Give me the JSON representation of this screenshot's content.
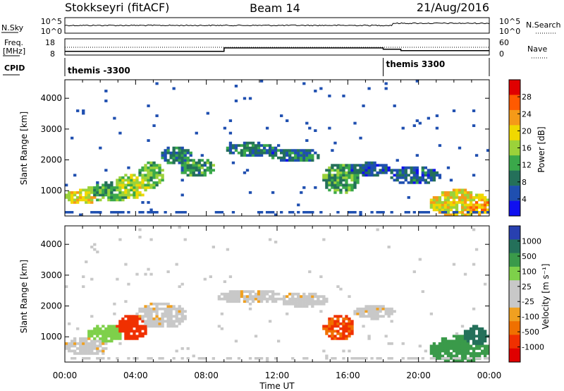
{
  "header": {
    "station": "Stokkseyri (fitACF)",
    "beam": "Beam 14",
    "date": "21/Aug/2016"
  },
  "sky_panel": {
    "left_label": "N.Sky",
    "right_label": "N.Search",
    "left_ticks": [
      "10^5",
      "10^0"
    ],
    "right_ticks": [
      "10^5",
      "10^0"
    ]
  },
  "freq_panel": {
    "left_label_line1": "Freq.",
    "left_label_line2": "[MHz]",
    "right_label": "Nave",
    "left_ticks": [
      "18",
      "8"
    ],
    "right_ticks": [
      "60",
      "0"
    ],
    "freq_steps": [
      {
        "start_hour": 0,
        "end_hour": 9,
        "mhz": 10.3
      },
      {
        "start_hour": 9,
        "end_hour": 18,
        "mhz": 12.4
      },
      {
        "start_hour": 18,
        "end_hour": 19,
        "mhz": 11.6
      },
      {
        "start_hour": 19,
        "end_hour": 24,
        "mhz": 10.7
      }
    ]
  },
  "cpid_panel": {
    "label": "CPID",
    "segments": [
      {
        "start_hour": 0,
        "label": "themis -3300"
      },
      {
        "start_hour": 18,
        "label": "themis 3300"
      }
    ]
  },
  "chart_data": [
    {
      "type": "heatmap",
      "name": "power",
      "ylabel": "Slant Range [km]",
      "xlabel": "",
      "ylim": [
        180,
        4600
      ],
      "yticks": [
        "1000",
        "2000",
        "3000",
        "4000"
      ],
      "colorbar_label": "Power [dB]",
      "colorbar_ticks": [
        "28",
        "24",
        "20",
        "16",
        "12",
        "8",
        "4"
      ],
      "colorbar_colors": [
        "#e00000",
        "#ff5a00",
        "#f59a18",
        "#f0d800",
        "#9bd23a",
        "#3aa84a",
        "#24705a",
        "#1f4fb0",
        "#1010f0"
      ],
      "blobs": [
        {
          "x": 1.0,
          "y": 800,
          "sx": 0.7,
          "sy": 160,
          "v": 20
        },
        {
          "x": 2.5,
          "y": 950,
          "sx": 0.9,
          "sy": 220,
          "v": 14
        },
        {
          "x": 3.8,
          "y": 1150,
          "sx": 0.7,
          "sy": 280,
          "v": 18
        },
        {
          "x": 4.9,
          "y": 1500,
          "sx": 0.5,
          "sy": 300,
          "v": 14
        },
        {
          "x": 6.3,
          "y": 2150,
          "sx": 0.6,
          "sy": 200,
          "v": 10
        },
        {
          "x": 7.5,
          "y": 1750,
          "sx": 0.7,
          "sy": 220,
          "v": 12
        },
        {
          "x": 10.5,
          "y": 2350,
          "sx": 1.0,
          "sy": 150,
          "v": 10
        },
        {
          "x": 13.0,
          "y": 2150,
          "sx": 1.0,
          "sy": 160,
          "v": 9
        },
        {
          "x": 15.6,
          "y": 1400,
          "sx": 0.7,
          "sy": 350,
          "v": 13
        },
        {
          "x": 17.2,
          "y": 1700,
          "sx": 0.9,
          "sy": 150,
          "v": 8
        },
        {
          "x": 19.8,
          "y": 1500,
          "sx": 1.0,
          "sy": 200,
          "v": 8
        },
        {
          "x": 22.3,
          "y": 600,
          "sx": 1.2,
          "sy": 300,
          "v": 20
        },
        {
          "x": 23.3,
          "y": 500,
          "sx": 0.6,
          "sy": 200,
          "v": 24
        }
      ]
    },
    {
      "type": "heatmap",
      "name": "velocity",
      "ylabel": "Slant Range [km]",
      "xlabel": "Time UT",
      "ylim": [
        180,
        4600
      ],
      "yticks": [
        "1000",
        "2000",
        "3000",
        "4000"
      ],
      "colorbar_label": "Velocity [m s⁻¹]",
      "colorbar_ticks": [
        "1000",
        "500",
        "100",
        "25",
        "-25",
        "-100",
        "-500",
        "-1000"
      ],
      "colorbar_colors": [
        "#2840b0",
        "#24705a",
        "#3a9a4a",
        "#7ed04a",
        "#c8c8c8",
        "#c8c8c8",
        "#f0a020",
        "#f07000",
        "#f03000",
        "#e00000"
      ],
      "blobs": [
        {
          "x": 1.2,
          "y": 700,
          "sx": 0.9,
          "sy": 200,
          "v": 0
        },
        {
          "x": 2.3,
          "y": 1100,
          "sx": 0.7,
          "sy": 200,
          "v": 150
        },
        {
          "x": 3.8,
          "y": 1300,
          "sx": 0.6,
          "sy": 280,
          "v": -300
        },
        {
          "x": 5.5,
          "y": 1700,
          "sx": 1.0,
          "sy": 300,
          "v": 0
        },
        {
          "x": 10.5,
          "y": 2300,
          "sx": 1.3,
          "sy": 160,
          "v": 0
        },
        {
          "x": 13.5,
          "y": 2200,
          "sx": 1.0,
          "sy": 160,
          "v": 0
        },
        {
          "x": 15.5,
          "y": 1300,
          "sx": 0.6,
          "sy": 300,
          "v": -250
        },
        {
          "x": 17.5,
          "y": 1800,
          "sx": 0.8,
          "sy": 150,
          "v": 0
        },
        {
          "x": 22.3,
          "y": 600,
          "sx": 1.2,
          "sy": 300,
          "v": 400
        },
        {
          "x": 23.2,
          "y": 1000,
          "sx": 0.5,
          "sy": 250,
          "v": 700
        }
      ]
    }
  ],
  "time_axis": {
    "xlim": [
      0,
      24
    ],
    "ticks": [
      "00:00",
      "04:00",
      "08:00",
      "12:00",
      "16:00",
      "20:00",
      "00:00"
    ],
    "label": "Time UT"
  }
}
